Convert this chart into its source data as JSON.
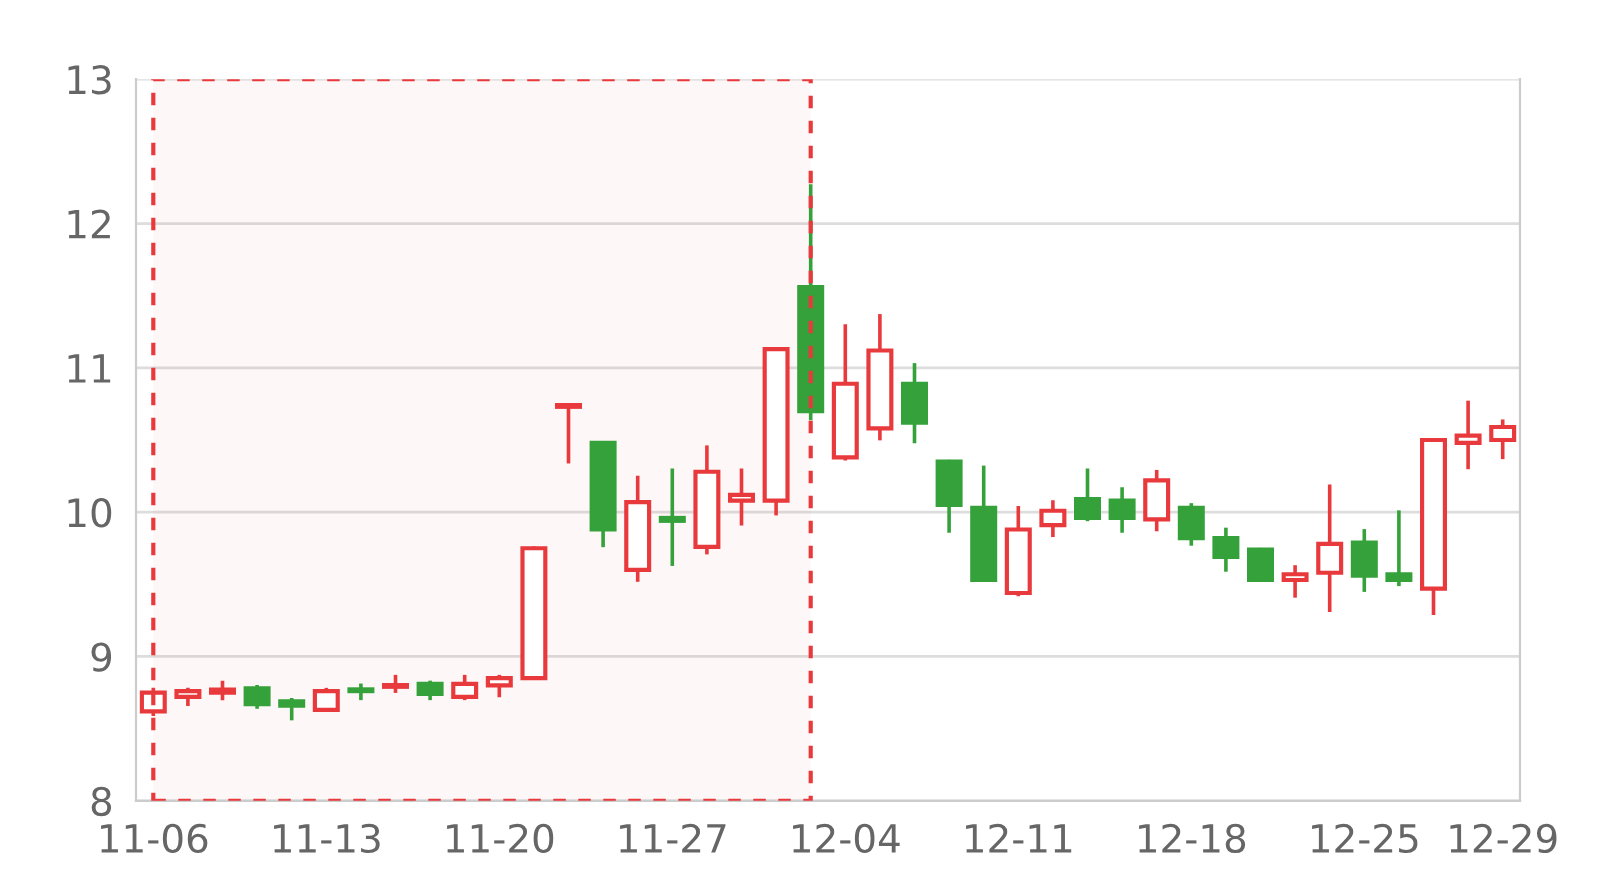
{
  "chart_data": {
    "type": "candlestick",
    "categories": [
      "11-06",
      null,
      null,
      null,
      null,
      "11-13",
      null,
      null,
      null,
      null,
      "11-20",
      null,
      null,
      null,
      null,
      "11-27",
      null,
      null,
      null,
      null,
      "12-04",
      null,
      null,
      null,
      null,
      "12-11",
      null,
      null,
      null,
      null,
      "12-18",
      null,
      null,
      null,
      null,
      "12-25",
      null,
      null,
      null,
      "12-29"
    ],
    "ohlc": [
      [
        8.62,
        8.77,
        8.6,
        8.75
      ],
      [
        8.72,
        8.77,
        8.67,
        8.76
      ],
      [
        8.75,
        8.82,
        8.71,
        8.77
      ],
      [
        8.78,
        8.79,
        8.65,
        8.67
      ],
      [
        8.69,
        8.7,
        8.57,
        8.66
      ],
      [
        8.63,
        8.77,
        8.63,
        8.76
      ],
      [
        8.77,
        8.8,
        8.71,
        8.76
      ],
      [
        8.79,
        8.86,
        8.76,
        8.8
      ],
      [
        8.81,
        8.82,
        8.71,
        8.74
      ],
      [
        8.72,
        8.86,
        8.71,
        8.81
      ],
      [
        8.8,
        8.86,
        8.73,
        8.85
      ],
      [
        8.85,
        9.75,
        8.85,
        9.75
      ],
      [
        10.73,
        10.74,
        10.35,
        10.74
      ],
      [
        10.48,
        10.48,
        9.77,
        9.88
      ],
      [
        9.6,
        10.24,
        9.53,
        10.07
      ],
      [
        9.96,
        10.29,
        9.64,
        9.94
      ],
      [
        9.76,
        10.45,
        9.72,
        10.28
      ],
      [
        10.08,
        10.29,
        9.92,
        10.12
      ],
      [
        10.08,
        11.13,
        9.99,
        11.13
      ],
      [
        11.56,
        12.26,
        10.65,
        10.7
      ],
      [
        10.38,
        11.29,
        10.37,
        10.89
      ],
      [
        10.58,
        11.36,
        10.51,
        11.12
      ],
      [
        10.89,
        11.02,
        10.49,
        10.62
      ],
      [
        10.35,
        10.35,
        9.87,
        10.05
      ],
      [
        10.03,
        10.31,
        9.53,
        9.53
      ],
      [
        9.44,
        10.03,
        9.43,
        9.88
      ],
      [
        9.91,
        10.07,
        9.84,
        10.01
      ],
      [
        10.09,
        10.29,
        9.95,
        9.96
      ],
      [
        10.08,
        10.16,
        9.87,
        9.96
      ],
      [
        9.95,
        10.28,
        9.88,
        10.22
      ],
      [
        10.03,
        10.05,
        9.78,
        9.82
      ],
      [
        9.82,
        9.88,
        9.6,
        9.69
      ],
      [
        9.74,
        9.74,
        9.53,
        9.53
      ],
      [
        9.53,
        9.62,
        9.42,
        9.57
      ],
      [
        9.58,
        10.18,
        9.32,
        9.78
      ],
      [
        9.79,
        9.87,
        9.46,
        9.56
      ],
      [
        9.57,
        10.0,
        9.5,
        9.53
      ],
      [
        9.47,
        10.5,
        9.3,
        10.5
      ],
      [
        10.48,
        10.76,
        10.31,
        10.53
      ],
      [
        10.5,
        10.63,
        10.38,
        10.59
      ]
    ],
    "colors": [
      "#e8393d",
      "#e8393d",
      "#e8393d",
      "#34a13a",
      "#34a13a",
      "#e8393d",
      "#34a13a",
      "#e8393d",
      "#34a13a",
      "#e8393d",
      "#e8393d",
      "#e8393d",
      "#e8393d",
      "#34a13a",
      "#e8393d",
      "#34a13a",
      "#e8393d",
      "#e8393d",
      "#e8393d",
      "#34a13a",
      "#e8393d",
      "#e8393d",
      "#34a13a",
      "#34a13a",
      "#34a13a",
      "#e8393d",
      "#e8393d",
      "#34a13a",
      "#34a13a",
      "#e8393d",
      "#34a13a",
      "#34a13a",
      "#34a13a",
      "#e8393d",
      "#e8393d",
      "#34a13a",
      "#34a13a",
      "#e8393d",
      "#e8393d",
      "#e8393d"
    ],
    "ylim": [
      8,
      13
    ],
    "yticks": [
      8,
      9,
      10,
      11,
      12,
      13
    ],
    "grid": "y"
  }
}
